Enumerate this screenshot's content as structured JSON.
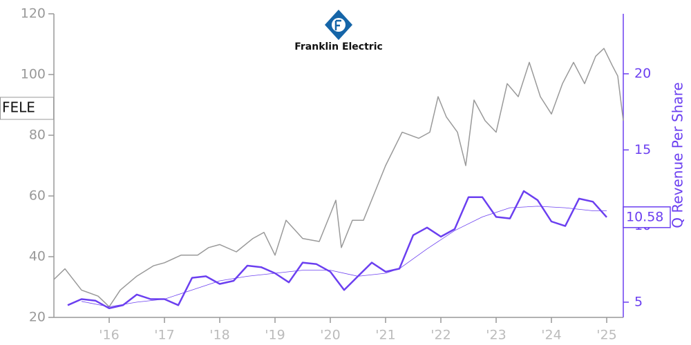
{
  "chart_data": {
    "type": "line",
    "logo_text": "Franklin Electric",
    "ticker": "FELE",
    "y2label": "Q Revenue Per Share",
    "xlim": [
      2015.0,
      2025.3
    ],
    "xticks": [
      {
        "value": 2016,
        "label": "'16"
      },
      {
        "value": 2017,
        "label": "'17"
      },
      {
        "value": 2018,
        "label": "'18"
      },
      {
        "value": 2019,
        "label": "'19"
      },
      {
        "value": 2020,
        "label": "'20"
      },
      {
        "value": 2021,
        "label": "'21"
      },
      {
        "value": 2022,
        "label": "'22"
      },
      {
        "value": 2023,
        "label": "'23"
      },
      {
        "value": 2024,
        "label": "'24"
      },
      {
        "value": 2025,
        "label": "'25"
      }
    ],
    "ylim": [
      20,
      120
    ],
    "yticks": [
      20,
      40,
      60,
      80,
      100,
      120
    ],
    "y2lim": [
      4.0,
      23.94
    ],
    "y2ticks": [
      5,
      10,
      15,
      20
    ],
    "y_color": "#999999",
    "y2_color": "#6b3ff0",
    "series": [
      {
        "axis": "y",
        "color": "#999999",
        "line_width": 1.5,
        "x": [
          2015.0,
          2015.2,
          2015.5,
          2015.8,
          2016.0,
          2016.2,
          2016.5,
          2016.8,
          2017.0,
          2017.3,
          2017.6,
          2017.8,
          2018.0,
          2018.3,
          2018.6,
          2018.8,
          2019.0,
          2019.2,
          2019.5,
          2019.8,
          2020.0,
          2020.1,
          2020.2,
          2020.4,
          2020.6,
          2020.8,
          2021.0,
          2021.3,
          2021.6,
          2021.8,
          2021.95,
          2022.1,
          2022.3,
          2022.45,
          2022.6,
          2022.8,
          2023.0,
          2023.2,
          2023.4,
          2023.6,
          2023.8,
          2024.0,
          2024.2,
          2024.4,
          2024.6,
          2024.8,
          2024.95,
          2025.1,
          2025.2,
          2025.3
        ],
        "values": [
          32.5,
          36,
          29,
          27,
          23.5,
          29,
          33.6,
          37,
          38,
          40.5,
          40.5,
          43,
          44,
          41.6,
          46,
          48,
          40.5,
          52,
          46,
          45,
          54,
          58.6,
          43,
          52,
          52,
          61,
          70,
          81,
          79,
          81,
          92.7,
          86,
          81,
          70,
          91.6,
          84.8,
          81,
          97,
          92.7,
          104,
          92.7,
          87,
          97,
          104,
          97,
          106,
          108.6,
          103,
          99.5,
          84.8
        ]
      },
      {
        "axis": "y2",
        "color": "#6b3ff0",
        "line_width": 2.5,
        "last_value_label": "10.58",
        "x": [
          2015.25,
          2015.5,
          2015.75,
          2016.0,
          2016.25,
          2016.5,
          2016.75,
          2017.0,
          2017.25,
          2017.5,
          2017.75,
          2018.0,
          2018.25,
          2018.5,
          2018.75,
          2019.0,
          2019.25,
          2019.5,
          2019.75,
          2020.0,
          2020.25,
          2020.5,
          2020.75,
          2021.0,
          2021.25,
          2021.5,
          2021.75,
          2022.0,
          2022.25,
          2022.5,
          2022.75,
          2023.0,
          2023.25,
          2023.5,
          2023.75,
          2024.0,
          2024.25,
          2024.5,
          2024.75,
          2025.0
        ],
        "values": [
          4.8,
          5.2,
          5.1,
          4.6,
          4.8,
          5.5,
          5.2,
          5.2,
          4.8,
          6.6,
          6.7,
          6.2,
          6.4,
          7.4,
          7.3,
          6.9,
          6.3,
          7.6,
          7.5,
          7.0,
          5.8,
          6.7,
          7.6,
          7.0,
          7.2,
          9.4,
          9.9,
          9.3,
          9.8,
          11.9,
          11.9,
          10.6,
          10.5,
          12.3,
          11.7,
          10.3,
          10.0,
          11.8,
          11.6,
          10.58
        ]
      },
      {
        "axis": "y2",
        "color": "#6b3ff0",
        "line_width": 0.8,
        "x": [
          2015.5,
          2016.0,
          2016.5,
          2017.0,
          2017.5,
          2018.0,
          2018.5,
          2019.0,
          2019.5,
          2020.0,
          2020.5,
          2021.0,
          2021.25,
          2021.75,
          2022.25,
          2022.75,
          2023.25,
          2023.75,
          2024.25,
          2024.75,
          2025.0
        ],
        "values": [
          5.05,
          4.7,
          5.0,
          5.2,
          5.8,
          6.4,
          6.7,
          6.9,
          7.1,
          7.1,
          6.7,
          6.9,
          7.2,
          8.5,
          9.7,
          10.6,
          11.2,
          11.3,
          11.2,
          11.0,
          11.0
        ]
      }
    ]
  }
}
